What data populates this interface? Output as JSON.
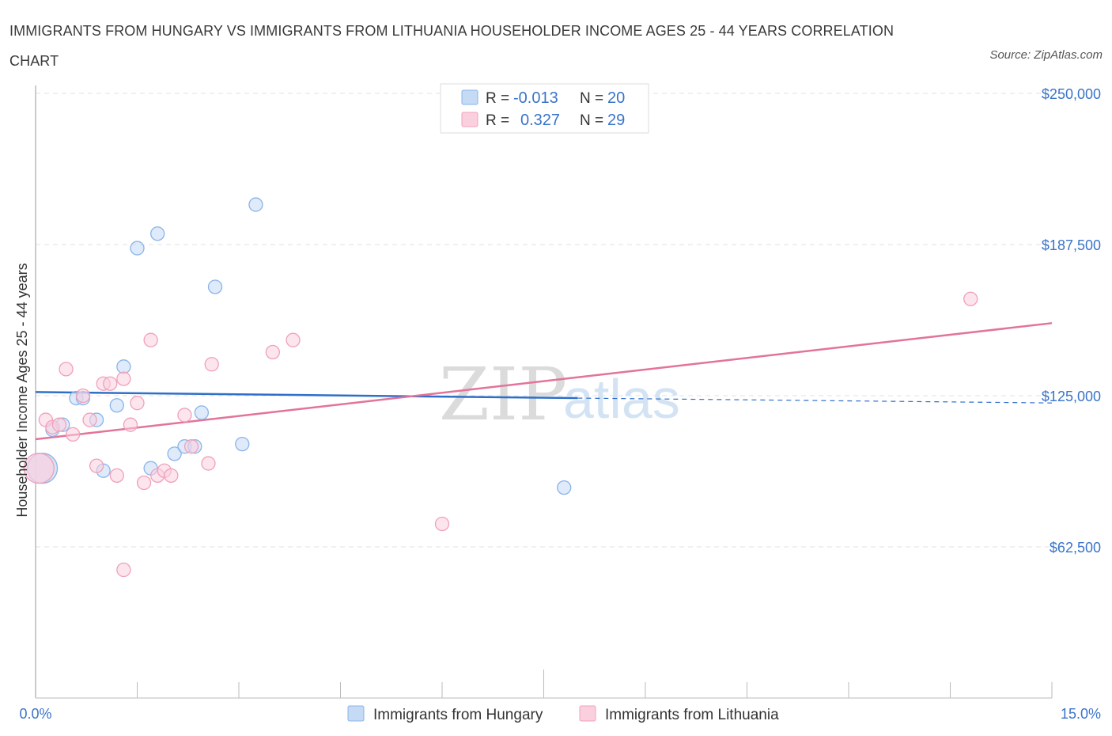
{
  "chart_data": {
    "type": "scatter",
    "title": "IMMIGRANTS FROM HUNGARY VS IMMIGRANTS FROM LITHUANIA HOUSEHOLDER INCOME AGES 25 - 44 YEARS CORRELATION CHART",
    "source": "Source: ZipAtlas.com",
    "xlabel": "",
    "ylabel": "Householder Income Ages 25 - 44 years",
    "xlim": [
      0,
      15
    ],
    "ylim": [
      0,
      250000
    ],
    "x_tick_labels": {
      "min": "0.0%",
      "max": "15.0%"
    },
    "y_ticks": [
      {
        "value": 62500,
        "label": "$62,500"
      },
      {
        "value": 125000,
        "label": "$125,000"
      },
      {
        "value": 187500,
        "label": "$187,500"
      },
      {
        "value": 250000,
        "label": "$250,000"
      }
    ],
    "watermark": {
      "zip": "ZIP",
      "atlas": "atlas"
    },
    "legend_box": {
      "rows": [
        {
          "r_label": "R =",
          "r_value": "-0.013",
          "n_label": "N =",
          "n_value": "20"
        },
        {
          "r_label": "R =",
          "r_value": "0.327",
          "n_label": "N =",
          "n_value": "29"
        }
      ]
    },
    "series": [
      {
        "name": "Immigrants from Hungary",
        "color": "#8ab4e8",
        "fill": "#c5daf5",
        "line_color": "#2f6fc9",
        "r": -0.013,
        "n": 20,
        "trend": {
          "x0": 0,
          "y0": 126500,
          "x1": 8.0,
          "y1": 124000,
          "dash_to_x": 15,
          "dash_y1": 122000
        },
        "points": [
          {
            "x": 0.1,
            "y": 95000,
            "big": true
          },
          {
            "x": 0.25,
            "y": 111000
          },
          {
            "x": 0.4,
            "y": 113000
          },
          {
            "x": 0.6,
            "y": 124000
          },
          {
            "x": 0.7,
            "y": 124000
          },
          {
            "x": 0.9,
            "y": 115000
          },
          {
            "x": 1.0,
            "y": 94000
          },
          {
            "x": 1.2,
            "y": 121000
          },
          {
            "x": 1.3,
            "y": 137000
          },
          {
            "x": 1.5,
            "y": 186000
          },
          {
            "x": 1.7,
            "y": 95000
          },
          {
            "x": 1.8,
            "y": 192000
          },
          {
            "x": 2.05,
            "y": 101000
          },
          {
            "x": 2.2,
            "y": 104000
          },
          {
            "x": 2.35,
            "y": 104000
          },
          {
            "x": 2.45,
            "y": 118000
          },
          {
            "x": 2.65,
            "y": 170000
          },
          {
            "x": 3.05,
            "y": 105000
          },
          {
            "x": 3.25,
            "y": 204000
          },
          {
            "x": 7.8,
            "y": 87000
          }
        ]
      },
      {
        "name": "Immigrants from Lithuania",
        "color": "#f0a0bc",
        "fill": "#fbd0de",
        "line_color": "#e3739a",
        "r": 0.327,
        "n": 29,
        "trend": {
          "x0": 0,
          "y0": 107000,
          "x1": 15,
          "y1": 155000
        },
        "points": [
          {
            "x": 0.05,
            "y": 95000,
            "big": true
          },
          {
            "x": 0.15,
            "y": 115000
          },
          {
            "x": 0.25,
            "y": 112000
          },
          {
            "x": 0.35,
            "y": 113000
          },
          {
            "x": 0.45,
            "y": 136000
          },
          {
            "x": 0.55,
            "y": 109000
          },
          {
            "x": 0.7,
            "y": 125000
          },
          {
            "x": 0.8,
            "y": 115000
          },
          {
            "x": 0.9,
            "y": 96000
          },
          {
            "x": 1.0,
            "y": 130000
          },
          {
            "x": 1.1,
            "y": 130000
          },
          {
            "x": 1.2,
            "y": 92000
          },
          {
            "x": 1.3,
            "y": 132000
          },
          {
            "x": 1.3,
            "y": 53000
          },
          {
            "x": 1.4,
            "y": 113000
          },
          {
            "x": 1.5,
            "y": 122000
          },
          {
            "x": 1.6,
            "y": 89000
          },
          {
            "x": 1.7,
            "y": 148000
          },
          {
            "x": 1.8,
            "y": 92000
          },
          {
            "x": 1.9,
            "y": 94000
          },
          {
            "x": 2.0,
            "y": 92000
          },
          {
            "x": 2.2,
            "y": 117000
          },
          {
            "x": 2.3,
            "y": 104000
          },
          {
            "x": 2.55,
            "y": 97000
          },
          {
            "x": 2.6,
            "y": 138000
          },
          {
            "x": 3.5,
            "y": 143000
          },
          {
            "x": 3.8,
            "y": 148000
          },
          {
            "x": 6.0,
            "y": 72000
          },
          {
            "x": 13.8,
            "y": 165000
          }
        ]
      }
    ]
  }
}
